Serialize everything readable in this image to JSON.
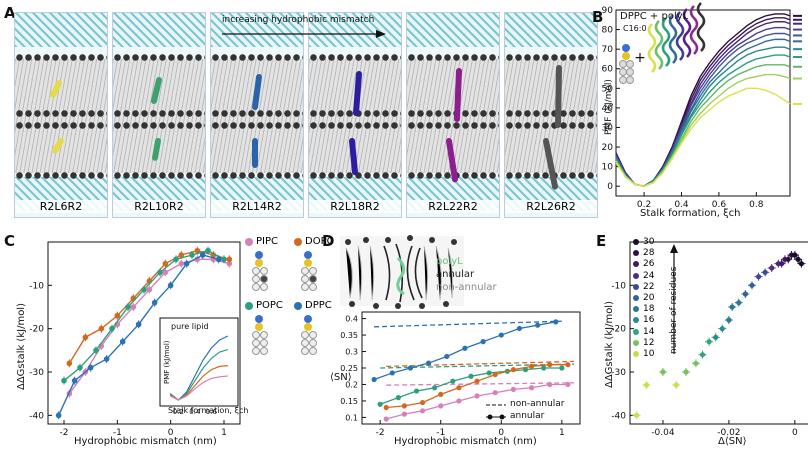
{
  "panelA": {
    "letter": "A",
    "arrow_text": "increasing hydrophobic mismatch",
    "snapshots": [
      {
        "label": "R2L6R2",
        "helix_color": "#e5d94c"
      },
      {
        "label": "R2L10R2",
        "helix_color": "#3ea26e"
      },
      {
        "label": "R2L14R2",
        "helix_color": "#2a64a8"
      },
      {
        "label": "R2L18R2",
        "helix_color": "#2b1fa0"
      },
      {
        "label": "R2L22R2",
        "helix_color": "#8b1f8e"
      },
      {
        "label": "R2L26R2",
        "helix_color": "#555555"
      }
    ]
  },
  "panelB": {
    "letter": "B",
    "legend_title": "DPPC + polyL",
    "legend_sub": "C16:0",
    "ylabel": "PMF (kJ/mol)",
    "xlabel": "Stalk formation, ξch",
    "series_colors": [
      "#2b0f3a",
      "#3a1a5c",
      "#4b2a7f",
      "#4a3f8f",
      "#3d5a96",
      "#306f96",
      "#27868e",
      "#2aa07d",
      "#5fb76a",
      "#9fcf58",
      "#d9e24c"
    ]
  },
  "panelC": {
    "letter": "C",
    "ylabel": "ΔΔGstalk (kJ/mol)",
    "xlabel": "Hydrophobic mismatch (nm)",
    "legend": [
      {
        "name": "PIPC",
        "color": "#d77fb8"
      },
      {
        "name": "DOPC",
        "color": "#d4681f"
      },
      {
        "name": "POPC",
        "color": "#2e9e7e"
      },
      {
        "name": "DPPC",
        "color": "#2a72b6"
      }
    ],
    "inset_title": "pure lipid",
    "inset_ylabel": "PMF (kJ/mol)",
    "inset_xlabel": "Stalk formation, ξch"
  },
  "panelD": {
    "letter": "D",
    "image_labels": {
      "polyl": "polyL",
      "annular": "annular",
      "non_annular": "non-annular"
    },
    "ylabel": "⟨SN⟩",
    "xlabel": "Hydrophobic mismatch (nm)",
    "legend_nonannular": "non-annular",
    "legend_annular": "annular"
  },
  "panelE": {
    "letter": "E",
    "ylabel": "ΔΔGstalk (kJ/mol)",
    "xlabel": "Δ⟨SN⟩",
    "arrow_text": "number of residues",
    "legend_residues": [
      {
        "n": "30",
        "color": "#1a0b2e"
      },
      {
        "n": "28",
        "color": "#2e1247"
      },
      {
        "n": "26",
        "color": "#431b66"
      },
      {
        "n": "24",
        "color": "#4a2f85"
      },
      {
        "n": "22",
        "color": "#3f4a91"
      },
      {
        "n": "20",
        "color": "#33619a"
      },
      {
        "n": "18",
        "color": "#2b7896"
      },
      {
        "n": "16",
        "color": "#268e8c"
      },
      {
        "n": "14",
        "color": "#33a57a"
      },
      {
        "n": "12",
        "color": "#78c062"
      },
      {
        "n": "10",
        "color": "#cddc4b"
      }
    ]
  },
  "chart_data": [
    {
      "panel": "B",
      "type": "line",
      "xlabel": "Stalk formation, ξch",
      "ylabel": "PMF (kJ/mol)",
      "xlim": [
        0.05,
        0.98
      ],
      "ylim": [
        -5,
        90
      ],
      "xticks": [
        0.2,
        0.4,
        0.6,
        0.8
      ],
      "yticks": [
        0,
        10,
        20,
        30,
        40,
        50,
        60,
        70,
        80,
        90
      ],
      "x": [
        0.05,
        0.1,
        0.15,
        0.2,
        0.25,
        0.3,
        0.35,
        0.4,
        0.45,
        0.5,
        0.55,
        0.6,
        0.65,
        0.7,
        0.75,
        0.8,
        0.85,
        0.9,
        0.95,
        0.98
      ],
      "series": [
        {
          "values": [
            17,
            7,
            1,
            0,
            3,
            10,
            20,
            33,
            46,
            56,
            63,
            69,
            74,
            78,
            82,
            85,
            87,
            88,
            88,
            87
          ]
        },
        {
          "values": [
            17,
            7,
            1,
            0,
            3,
            10,
            20,
            32,
            44,
            54,
            61,
            67,
            72,
            76,
            80,
            83,
            85,
            86,
            86,
            85
          ]
        },
        {
          "values": [
            16,
            7,
            1,
            0,
            3,
            9,
            19,
            31,
            42,
            52,
            59,
            65,
            70,
            74,
            78,
            81,
            83,
            84,
            84,
            83
          ]
        },
        {
          "values": [
            16,
            6,
            1,
            0,
            3,
            9,
            18,
            30,
            41,
            50,
            57,
            63,
            68,
            72,
            75,
            78,
            80,
            81,
            81,
            80
          ]
        },
        {
          "values": [
            15,
            6,
            1,
            0,
            3,
            9,
            18,
            29,
            39,
            48,
            55,
            61,
            66,
            70,
            73,
            75,
            77,
            78,
            78,
            77
          ]
        },
        {
          "values": [
            15,
            6,
            1,
            0,
            3,
            9,
            17,
            28,
            38,
            46,
            53,
            58,
            63,
            67,
            70,
            72,
            74,
            75,
            75,
            74
          ]
        },
        {
          "values": [
            14,
            6,
            1,
            0,
            3,
            8,
            17,
            27,
            36,
            44,
            51,
            56,
            60,
            64,
            67,
            69,
            70,
            71,
            71,
            70
          ]
        },
        {
          "values": [
            14,
            5,
            1,
            0,
            2,
            8,
            16,
            26,
            35,
            42,
            48,
            53,
            57,
            60,
            63,
            65,
            66,
            67,
            67,
            66
          ]
        },
        {
          "values": [
            13,
            5,
            1,
            0,
            2,
            8,
            15,
            24,
            33,
            40,
            45,
            50,
            54,
            57,
            59,
            61,
            62,
            62,
            62,
            61
          ]
        },
        {
          "values": [
            13,
            5,
            1,
            0,
            2,
            7,
            15,
            23,
            31,
            37,
            42,
            46,
            50,
            53,
            55,
            56,
            57,
            57,
            56,
            55
          ]
        },
        {
          "values": [
            12,
            5,
            1,
            0,
            2,
            7,
            14,
            22,
            29,
            35,
            39,
            43,
            46,
            48,
            50,
            50,
            49,
            47,
            44,
            42
          ]
        }
      ]
    },
    {
      "panel": "C",
      "type": "line",
      "xlabel": "Hydrophobic mismatch (nm)",
      "ylabel": "ΔΔGstalk (kJ/mol)",
      "xlim": [
        -2.3,
        1.3
      ],
      "ylim": [
        -42,
        0
      ],
      "xticks": [
        -2,
        -1,
        0,
        1
      ],
      "yticks": [
        -40,
        -30,
        -20,
        -10
      ],
      "series": [
        {
          "name": "PIPC",
          "x": [
            -1.9,
            -1.6,
            -1.3,
            -1.0,
            -0.7,
            -0.4,
            -0.1,
            0.2,
            0.5,
            0.8,
            1.1
          ],
          "values": [
            -35,
            -30,
            -24,
            -19,
            -15,
            -11,
            -7,
            -5,
            -4,
            -4,
            -5
          ]
        },
        {
          "name": "DOPC",
          "x": [
            -1.9,
            -1.6,
            -1.3,
            -1.0,
            -0.7,
            -0.4,
            -0.1,
            0.2,
            0.5,
            0.8,
            1.1
          ],
          "values": [
            -28,
            -22,
            -20,
            -17,
            -13,
            -9,
            -5,
            -3,
            -2,
            -3,
            -4
          ]
        },
        {
          "name": "POPC",
          "x": [
            -2.0,
            -1.7,
            -1.4,
            -1.1,
            -0.8,
            -0.5,
            -0.2,
            0.1,
            0.4,
            0.7,
            1.0
          ],
          "values": [
            -32,
            -29,
            -25,
            -20,
            -15,
            -11,
            -7,
            -4,
            -3,
            -2,
            -4
          ]
        },
        {
          "name": "DPPC",
          "x": [
            -2.1,
            -1.8,
            -1.5,
            -1.2,
            -0.9,
            -0.6,
            -0.3,
            0.0,
            0.3,
            0.6,
            0.9
          ],
          "values": [
            -40,
            -32,
            -29,
            -27,
            -23,
            -19,
            -14,
            -10,
            -5,
            -3,
            -4
          ]
        }
      ]
    },
    {
      "panel": "C-inset",
      "type": "line",
      "title": "pure lipid",
      "xlabel": "Stalk formation, ξch",
      "ylabel": "PMF (kJ/mol)",
      "xticks": [
        0.2,
        0.4,
        0.6
      ],
      "x": [
        0.1,
        0.2,
        0.3,
        0.4,
        0.5,
        0.6,
        0.7,
        0.8
      ],
      "series": [
        {
          "name": "DPPC",
          "values": [
            8,
            0,
            10,
            30,
            50,
            65,
            75,
            80
          ]
        },
        {
          "name": "POPC",
          "values": [
            7,
            0,
            8,
            24,
            40,
            52,
            60,
            63
          ]
        },
        {
          "name": "DOPC",
          "values": [
            6,
            0,
            6,
            18,
            30,
            38,
            42,
            43
          ]
        },
        {
          "name": "PIPC",
          "values": [
            5,
            0,
            5,
            14,
            22,
            27,
            29,
            30
          ]
        }
      ]
    },
    {
      "panel": "D",
      "type": "line",
      "xlabel": "Hydrophobic mismatch (nm)",
      "ylabel": "⟨SN⟩",
      "xlim": [
        -2.3,
        1.3
      ],
      "ylim": [
        0.08,
        0.42
      ],
      "xticks": [
        -2,
        -1,
        0,
        1
      ],
      "yticks": [
        0.1,
        0.15,
        0.2,
        0.25,
        0.3,
        0.35,
        0.4
      ],
      "series": [
        {
          "name": "DPPC non-annular",
          "x": [
            -2.1,
            1.0
          ],
          "values": [
            0.375,
            0.392
          ]
        },
        {
          "name": "POPC non-annular",
          "x": [
            -2.0,
            1.2
          ],
          "values": [
            0.25,
            0.262
          ]
        },
        {
          "name": "DOPC non-annular",
          "x": [
            -1.9,
            1.2
          ],
          "values": [
            0.255,
            0.27
          ]
        },
        {
          "name": "PIPC non-annular",
          "x": [
            -1.9,
            1.2
          ],
          "values": [
            0.198,
            0.205
          ]
        },
        {
          "name": "DPPC annular",
          "x": [
            -2.1,
            -1.8,
            -1.5,
            -1.2,
            -0.9,
            -0.6,
            -0.3,
            0.0,
            0.3,
            0.6,
            0.9
          ],
          "values": [
            0.215,
            0.235,
            0.25,
            0.265,
            0.285,
            0.31,
            0.33,
            0.35,
            0.37,
            0.38,
            0.39
          ]
        },
        {
          "name": "POPC annular",
          "x": [
            -2.0,
            -1.7,
            -1.4,
            -1.1,
            -0.8,
            -0.5,
            -0.2,
            0.1,
            0.4,
            0.7,
            1.0
          ],
          "values": [
            0.14,
            0.16,
            0.18,
            0.19,
            0.21,
            0.225,
            0.235,
            0.24,
            0.245,
            0.25,
            0.25
          ]
        },
        {
          "name": "DOPC annular",
          "x": [
            -1.9,
            -1.6,
            -1.3,
            -1.0,
            -0.7,
            -0.4,
            -0.1,
            0.2,
            0.5,
            0.8,
            1.1
          ],
          "values": [
            0.13,
            0.135,
            0.145,
            0.17,
            0.19,
            0.21,
            0.23,
            0.245,
            0.255,
            0.26,
            0.26
          ]
        },
        {
          "name": "PIPC annular",
          "x": [
            -1.9,
            -1.6,
            -1.3,
            -1.0,
            -0.7,
            -0.4,
            -0.1,
            0.2,
            0.5,
            0.8,
            1.1
          ],
          "values": [
            0.095,
            0.11,
            0.12,
            0.135,
            0.15,
            0.165,
            0.175,
            0.185,
            0.19,
            0.2,
            0.2
          ]
        }
      ]
    },
    {
      "panel": "E",
      "type": "scatter",
      "xlabel": "Δ⟨SN⟩",
      "ylabel": "ΔΔGstalk (kJ/mol)",
      "xlim": [
        -0.05,
        0.004
      ],
      "ylim": [
        -42,
        0
      ],
      "xticks": [
        -0.04,
        -0.02,
        0
      ],
      "yticks": [
        -40,
        -30,
        -20,
        -10
      ],
      "points": [
        {
          "x": -0.048,
          "y": -40,
          "n": 10
        },
        {
          "x": -0.045,
          "y": -33,
          "n": 10
        },
        {
          "x": -0.04,
          "y": -30,
          "n": 12
        },
        {
          "x": -0.036,
          "y": -33,
          "n": 10
        },
        {
          "x": -0.033,
          "y": -30,
          "n": 12
        },
        {
          "x": -0.03,
          "y": -28,
          "n": 12
        },
        {
          "x": -0.028,
          "y": -26,
          "n": 14
        },
        {
          "x": -0.026,
          "y": -23,
          "n": 14
        },
        {
          "x": -0.024,
          "y": -22,
          "n": 16
        },
        {
          "x": -0.022,
          "y": -20,
          "n": 16
        },
        {
          "x": -0.02,
          "y": -18,
          "n": 18
        },
        {
          "x": -0.019,
          "y": -15,
          "n": 18
        },
        {
          "x": -0.017,
          "y": -14,
          "n": 18
        },
        {
          "x": -0.015,
          "y": -12,
          "n": 20
        },
        {
          "x": -0.013,
          "y": -10,
          "n": 20
        },
        {
          "x": -0.011,
          "y": -8,
          "n": 22
        },
        {
          "x": -0.009,
          "y": -7,
          "n": 22
        },
        {
          "x": -0.007,
          "y": -6,
          "n": 24
        },
        {
          "x": -0.005,
          "y": -5,
          "n": 24
        },
        {
          "x": -0.004,
          "y": -5,
          "n": 26
        },
        {
          "x": -0.003,
          "y": -4,
          "n": 26
        },
        {
          "x": -0.002,
          "y": -4,
          "n": 28
        },
        {
          "x": -0.001,
          "y": -3,
          "n": 28
        },
        {
          "x": 0.0,
          "y": -3,
          "n": 30
        },
        {
          "x": 0.001,
          "y": -4,
          "n": 30
        },
        {
          "x": 0.002,
          "y": -5,
          "n": 30
        }
      ]
    }
  ]
}
